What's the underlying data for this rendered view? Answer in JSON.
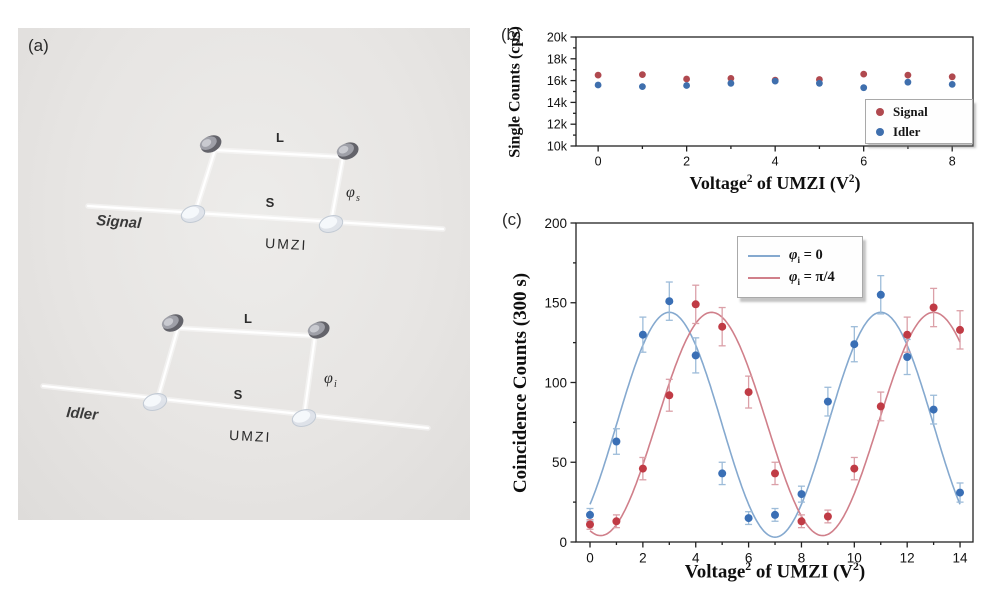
{
  "panel_a": {
    "tag": "(a)",
    "top": {
      "input": "Signal",
      "long_arm": "L",
      "short_arm": "S",
      "phi": "φ",
      "phi_sub": "s",
      "name": "UMZI"
    },
    "bottom": {
      "input": "Idler",
      "long_arm": "L",
      "short_arm": "S",
      "phi": "φ",
      "phi_sub": "i",
      "name": "UMZI"
    }
  },
  "panel_b": {
    "tag": "(b)",
    "ylabel": "Single Counts (cps)"
  },
  "panel_c": {
    "tag": "(c)",
    "ylabel": "Coincidence Counts (300 s)",
    "legend_items": [
      {
        "phi": "φ",
        "sub": "i",
        "eq": " = 0"
      },
      {
        "phi": "φ",
        "sub": "i",
        "eq": " = π/4"
      }
    ]
  },
  "axis": {
    "pre": "Voltage",
    "sup": "2",
    "mid": " of UMZI (V",
    "post": ")"
  },
  "chart_data": [
    {
      "panel": "b",
      "type": "scatter",
      "title": "",
      "xlabel": "Voltage² of UMZI (V²)",
      "ylabel": "Single Counts (cps)",
      "x": [
        0,
        1,
        2,
        3,
        4,
        5,
        6,
        7,
        8
      ],
      "series": [
        {
          "name": "Signal",
          "color": "#b0494f",
          "values": [
            16500,
            16550,
            16150,
            16200,
            16050,
            16100,
            16600,
            16500,
            16350
          ]
        },
        {
          "name": "Idler",
          "color": "#3f6fad",
          "values": [
            15600,
            15450,
            15550,
            15750,
            15950,
            15750,
            15350,
            15850,
            15650
          ]
        }
      ],
      "xlim": [
        -0.5,
        8.47
      ],
      "ylim": [
        10000,
        20000
      ],
      "xticks": [
        0,
        2,
        4,
        6,
        8
      ],
      "xminor": [
        1,
        3,
        5,
        7
      ],
      "yticks": [
        {
          "value": 10000,
          "label": "10k"
        },
        {
          "value": 12000,
          "label": "12k"
        },
        {
          "value": 14000,
          "label": "14k"
        },
        {
          "value": 16000,
          "label": "16k"
        },
        {
          "value": 18000,
          "label": "18k"
        },
        {
          "value": 20000,
          "label": "20k"
        }
      ],
      "yminor": [
        11000,
        13000,
        15000,
        17000,
        19000
      ],
      "grid": false,
      "legend_position": "lower right"
    },
    {
      "panel": "c",
      "type": "scatter-with-fit",
      "title": "",
      "xlabel": "Voltage² of UMZI (V²)",
      "ylabel": "Coincidence Counts (300 s)",
      "x": [
        0,
        1,
        2,
        3,
        4,
        5,
        6,
        7,
        8,
        9,
        10,
        11,
        12,
        13,
        14
      ],
      "series": [
        {
          "name": "φᵢ = 0",
          "point_color": "#3a6fb5",
          "curve_color": "#85a9cf",
          "err_color": "#9dbcd9",
          "values": [
            17,
            63,
            130,
            151,
            117,
            43,
            15,
            17,
            30,
            88,
            124,
            155,
            116,
            83,
            31
          ],
          "errors": [
            4,
            8,
            11,
            12,
            11,
            7,
            4,
            4,
            5,
            9,
            11,
            12,
            11,
            9,
            6
          ],
          "fit": {
            "model": "offset + amplitude*cos(2*pi*(x-peak)/period)",
            "offset": 73.5,
            "amplitude": 70.5,
            "period": 8.0,
            "peak": 3.0
          }
        },
        {
          "name": "φᵢ = π/4",
          "point_color": "#c03b45",
          "curve_color": "#d07f8a",
          "err_color": "#dba0a8",
          "values": [
            11,
            13,
            46,
            92,
            149,
            135,
            94,
            43,
            13,
            16,
            46,
            85,
            130,
            147,
            133
          ],
          "errors": [
            3,
            4,
            7,
            10,
            12,
            12,
            10,
            7,
            4,
            4,
            7,
            9,
            11,
            12,
            12
          ],
          "fit": {
            "model": "offset + amplitude*cos(2*pi*(x-peak)/period)",
            "offset": 74,
            "amplitude": 70,
            "period": 8.4,
            "peak": 4.6
          }
        }
      ],
      "xlim": [
        -0.53,
        14.49
      ],
      "ylim": [
        0,
        200
      ],
      "xticks": [
        0,
        2,
        4,
        6,
        8,
        10,
        12,
        14
      ],
      "xminor": [
        1,
        3,
        5,
        7,
        9,
        11,
        13
      ],
      "yticks": [
        {
          "value": 0,
          "label": "0"
        },
        {
          "value": 50,
          "label": "50"
        },
        {
          "value": 100,
          "label": "100"
        },
        {
          "value": 150,
          "label": "150"
        },
        {
          "value": 200,
          "label": "200"
        }
      ],
      "yminor": [
        25,
        75,
        125,
        175
      ],
      "grid": false,
      "legend_position": "upper center-right"
    }
  ]
}
